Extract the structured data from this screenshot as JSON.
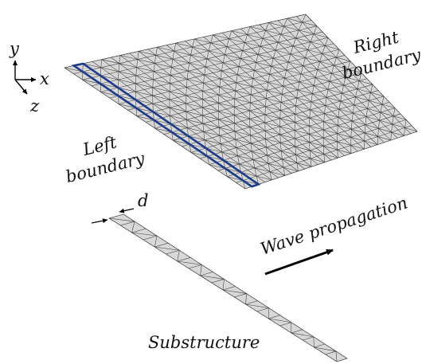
{
  "axes": {
    "y_label": "y",
    "x_label": "x",
    "z_label": "z"
  },
  "labels": {
    "right_boundary": [
      "Right",
      "boundary"
    ],
    "left_boundary": [
      "Left",
      "boundary"
    ],
    "width_symbol": "d",
    "wave_propagation": "Wave propagation",
    "substructure": "Substructure"
  },
  "mesh": {
    "rows": 20,
    "cols": 26
  },
  "strip": {
    "rows": 20,
    "cols": 1,
    "highlight_col": 1
  },
  "colors": {
    "mesh_fill": "#d8d8d8",
    "mesh_line": "#3a3a3a",
    "highlight": "#1f3c8a",
    "text": "#111111",
    "arrow": "#000000"
  },
  "icons": [
    "axis-triad-icon",
    "propagation-arrow-icon",
    "dimension-arrow-icon"
  ]
}
